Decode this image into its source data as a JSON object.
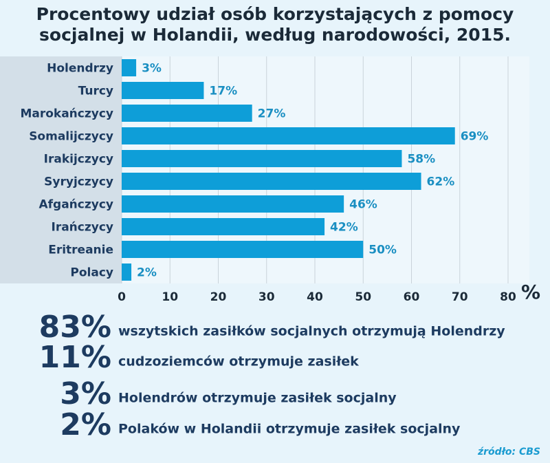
{
  "chart_data": {
    "type": "hbar",
    "title": [
      "Procentowy udział osób korzystających z pomocy",
      "socjalnej w Holandii, według narodowości, 2015."
    ],
    "categories": [
      "Holendrzy",
      "Turcy",
      "Marokańczycy",
      "Somalijczycy",
      "Irakijczycy",
      "Syryjczycy",
      "Afgańczycy",
      "Irańczycy",
      "Eritreanie",
      "Polacy"
    ],
    "values": [
      3,
      17,
      27,
      69,
      58,
      62,
      46,
      42,
      50,
      2
    ],
    "value_labels": [
      "3%",
      "17%",
      "27%",
      "69%",
      "58%",
      "62%",
      "46%",
      "42%",
      "50%",
      "2%"
    ],
    "color": "#0e9ed8",
    "xlabel": "%",
    "xlim": [
      0,
      80
    ],
    "xticks": [
      0,
      10,
      20,
      30,
      40,
      50,
      60,
      70,
      80
    ],
    "grid": true
  },
  "stats": [
    {
      "number": "83%",
      "text": "wszytskich zasiłków socjalnych otrzymują Holendrzy"
    },
    {
      "number": "11%",
      "text": "cudzoziemców otrzymuje zasiłek"
    },
    {
      "number": "3%",
      "text": "Holendrów otrzymuje zasiłek socjalny"
    },
    {
      "number": "2%",
      "text": "Polaków w Holandii otrzymuje zasiłek socjalny"
    }
  ],
  "source": "źródło: CBS"
}
